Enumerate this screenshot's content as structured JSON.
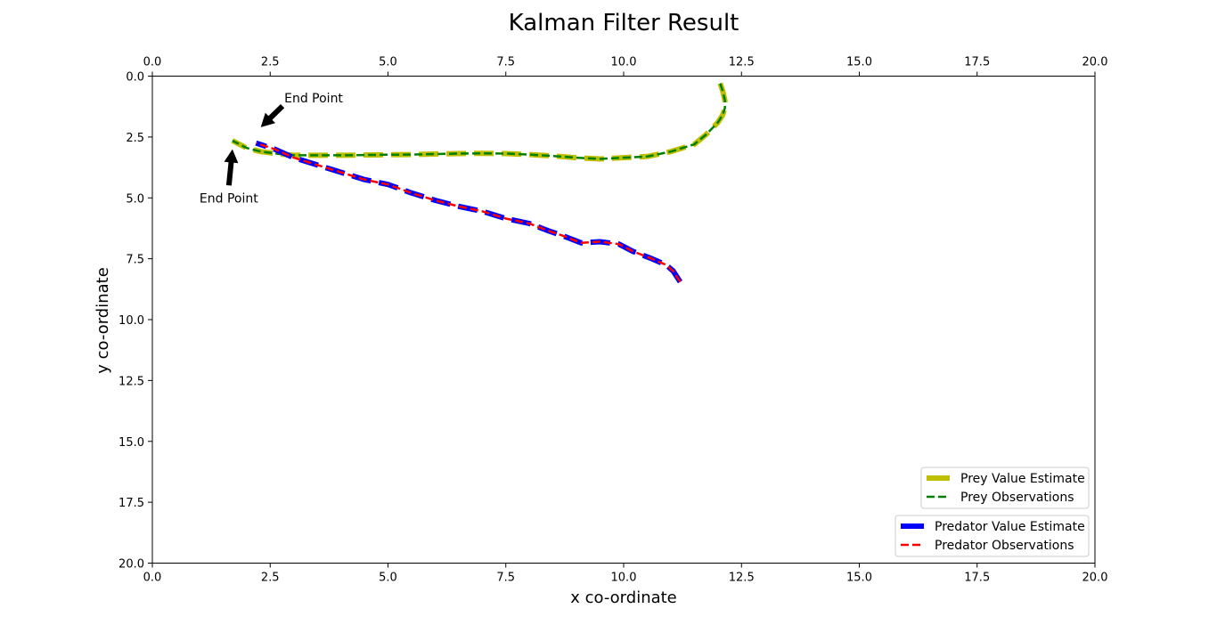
{
  "chart_data": {
    "type": "line",
    "title": "Kalman Filter Result",
    "xlabel": "x co-ordinate",
    "ylabel": "y co-ordinate",
    "xlim": [
      0,
      20
    ],
    "ylim": [
      20,
      0
    ],
    "y_inverted": true,
    "x_ticks_top_and_bottom": true,
    "xticks": [
      "0.0",
      "2.5",
      "5.0",
      "7.5",
      "10.0",
      "12.5",
      "15.0",
      "17.5",
      "20.0"
    ],
    "yticks": [
      "0.0",
      "2.5",
      "5.0",
      "7.5",
      "10.0",
      "12.5",
      "15.0",
      "17.5",
      "20.0"
    ],
    "grid": false,
    "series": [
      {
        "name": "Prey Value Estimate",
        "color": "#bfbf00",
        "style": "dashed-thick",
        "x": [
          12.05,
          12.1,
          12.15,
          12.15,
          12.1,
          12.0,
          11.75,
          11.5,
          11.0,
          10.5,
          10.0,
          9.5,
          9.0,
          8.5,
          8.0,
          7.5,
          7.0,
          6.5,
          6.0,
          5.5,
          5.0,
          4.5,
          4.0,
          3.5,
          3.0,
          2.7,
          2.3,
          2.0,
          1.7
        ],
        "y": [
          0.3,
          0.6,
          1.0,
          1.3,
          1.6,
          1.9,
          2.4,
          2.8,
          3.1,
          3.3,
          3.35,
          3.4,
          3.35,
          3.28,
          3.22,
          3.18,
          3.17,
          3.18,
          3.2,
          3.22,
          3.23,
          3.24,
          3.25,
          3.25,
          3.25,
          3.2,
          3.1,
          2.95,
          2.65
        ]
      },
      {
        "name": "Prey Observations",
        "color": "#008000",
        "style": "dashed",
        "x": [
          12.05,
          12.1,
          12.15,
          12.15,
          12.1,
          12.0,
          11.75,
          11.5,
          11.0,
          10.5,
          10.0,
          9.5,
          9.0,
          8.5,
          8.0,
          7.5,
          7.0,
          6.5,
          6.0,
          5.5,
          5.0,
          4.5,
          4.0,
          3.5,
          3.0,
          2.7,
          2.3,
          2.0,
          1.7
        ],
        "y": [
          0.3,
          0.6,
          1.0,
          1.3,
          1.6,
          1.9,
          2.4,
          2.8,
          3.1,
          3.3,
          3.35,
          3.4,
          3.35,
          3.28,
          3.22,
          3.18,
          3.17,
          3.18,
          3.2,
          3.22,
          3.23,
          3.24,
          3.25,
          3.25,
          3.25,
          3.2,
          3.1,
          2.95,
          2.65
        ]
      },
      {
        "name": "Predator Value Estimate",
        "color": "#0000ff",
        "style": "dashed-thick",
        "x": [
          11.2,
          11.15,
          11.05,
          10.9,
          10.6,
          10.2,
          9.9,
          9.5,
          9.1,
          8.7,
          8.4,
          8.0,
          7.5,
          7.0,
          6.5,
          6.0,
          5.5,
          5.0,
          4.5,
          4.0,
          3.5,
          3.0,
          2.6,
          2.2
        ],
        "y": [
          8.45,
          8.3,
          8.0,
          7.75,
          7.5,
          7.2,
          6.9,
          6.8,
          6.85,
          6.55,
          6.35,
          6.05,
          5.85,
          5.55,
          5.35,
          5.1,
          4.8,
          4.45,
          4.25,
          3.95,
          3.65,
          3.35,
          3.0,
          2.75
        ]
      },
      {
        "name": "Predator Observations",
        "color": "#ff0000",
        "style": "dashed",
        "x": [
          11.2,
          11.15,
          11.05,
          10.9,
          10.6,
          10.2,
          9.9,
          9.5,
          9.1,
          8.7,
          8.4,
          8.0,
          7.5,
          7.0,
          6.5,
          6.0,
          5.5,
          5.0,
          4.5,
          4.0,
          3.5,
          3.0,
          2.6,
          2.2
        ],
        "y": [
          8.45,
          8.3,
          8.0,
          7.75,
          7.5,
          7.2,
          6.9,
          6.8,
          6.85,
          6.55,
          6.35,
          6.05,
          5.85,
          5.55,
          5.35,
          5.1,
          4.8,
          4.45,
          4.25,
          3.95,
          3.65,
          3.35,
          3.0,
          2.75
        ]
      }
    ],
    "legends": [
      {
        "placement": "lower-right",
        "entries": [
          "Prey Value Estimate",
          "Prey Observations"
        ]
      },
      {
        "placement": "bottom-right",
        "entries": [
          "Predator Value Estimate",
          "Predator Observations"
        ]
      }
    ],
    "annotations": [
      {
        "text": "End Point",
        "point": [
          2.3,
          2.1
        ],
        "text_at": [
          2.8,
          0.9
        ]
      },
      {
        "text": "End Point",
        "point": [
          1.7,
          3.0
        ],
        "text_at": [
          1.0,
          5.0
        ]
      }
    ]
  }
}
